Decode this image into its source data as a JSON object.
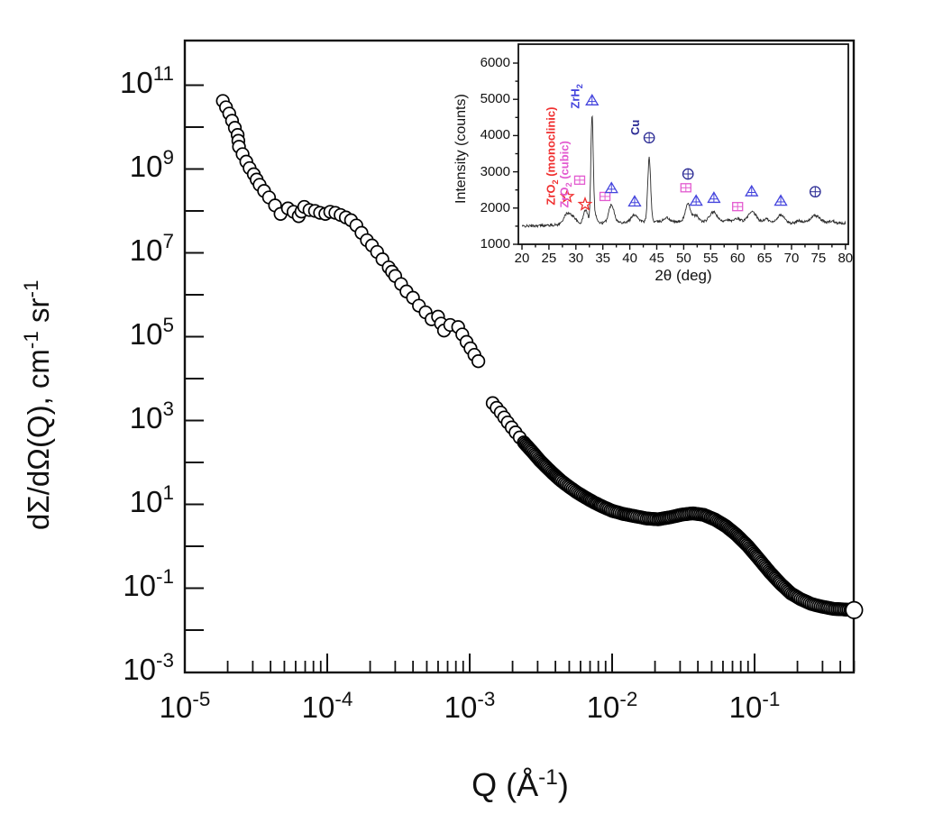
{
  "accent_colors": {
    "frame": "#111111",
    "trace": "#2b2b2b",
    "monoclinic_red": "#f03030",
    "cubic_magenta": "#e35bd0",
    "zrh2_blue": "#4444dd",
    "cu_navy": "#2b2b94"
  },
  "chart_data": [
    {
      "type": "scatter",
      "title": "",
      "x_scale": "log",
      "y_scale": "log",
      "xlim": [
        1e-05,
        0.52
      ],
      "ylim": [
        0.001,
        1200000000000.0
      ],
      "xlabel_parts": {
        "pre": "Q (Å",
        "sup": "-1",
        "post": ")"
      },
      "ylabel_parts": {
        "pre": "dΣ/dΩ(Q), cm",
        "sup1": "-1",
        "mid": " sr",
        "sup2": "-1"
      },
      "tick_base": "10",
      "x_tick_exponents": [
        -5,
        -4,
        -3,
        -2,
        -1
      ],
      "y_tick_exponents": [
        11,
        9,
        7,
        5,
        3,
        1,
        -1,
        -3
      ],
      "grid": false,
      "marker": "open-circle",
      "series": [
        {
          "name": "segment-1",
          "points": [
            [
              1.85e-05,
              42000000000.0
            ],
            [
              2.05e-05,
              21000000000.0
            ],
            [
              2.35e-05,
              6500000000.0
            ],
            [
              2.4e-05,
              3400000000.0
            ],
            [
              2.7e-05,
              1500000000.0
            ],
            [
              2.85e-05,
              1050000000.0
            ],
            [
              3.05e-05,
              750000000.0
            ],
            [
              3.35e-05,
              420000000.0
            ],
            [
              3.6e-05,
              300000000.0
            ],
            [
              3.9e-05,
              210000000.0
            ],
            [
              4.3e-05,
              135000000.0
            ],
            [
              4.7e-05,
              85000000.0
            ],
            [
              5.3e-05,
              115000000.0
            ],
            [
              5.8e-05,
              95000000.0
            ],
            [
              6.3e-05,
              75000000.0
            ],
            [
              6.9e-05,
              125000000.0
            ],
            [
              7.5e-05,
              105000000.0
            ],
            [
              8.2e-05,
              100000000.0
            ],
            [
              8.9e-05,
              90000000.0
            ],
            [
              9.7e-05,
              85000000.0
            ],
            [
              0.000105,
              95000000.0
            ],
            [
              0.000114,
              90000000.0
            ],
            [
              0.000124,
              80000000.0
            ],
            [
              0.000135,
              70000000.0
            ],
            [
              0.000147,
              60000000.0
            ],
            [
              0.00016,
              45000000.0
            ],
            [
              0.000174,
              30000000.0
            ],
            [
              0.00019,
              20000000.0
            ],
            [
              0.000206,
              15000000.0
            ],
            [
              0.000224,
              10500000.0
            ],
            [
              0.000244,
              7000000.0
            ],
            [
              0.00027,
              4500000.0
            ],
            [
              0.0003,
              2800000.0
            ],
            [
              0.00033,
              1800000.0
            ],
            [
              0.00036,
              1200000.0
            ],
            [
              0.0004,
              850000.0
            ],
            [
              0.00044,
              550000.0
            ],
            [
              0.00049,
              380000.0
            ],
            [
              0.00054,
              260000.0
            ],
            [
              0.0006,
              300000.0
            ],
            [
              0.00066,
              140000.0
            ],
            [
              0.00073,
              190000.0
            ],
            [
              0.00083,
              170000.0
            ],
            [
              0.00095,
              75000.0
            ],
            [
              0.00115,
              26000.0
            ]
          ],
          "end_marker_large": false
        },
        {
          "name": "segment-2",
          "points": [
            [
              0.00145,
              2600
            ],
            [
              0.00165,
              1550
            ],
            [
              0.00185,
              900
            ],
            [
              0.0021,
              520
            ],
            [
              0.0024,
              300
            ],
            [
              0.00275,
              180
            ],
            [
              0.0031,
              112
            ],
            [
              0.0035,
              74
            ],
            [
              0.0039,
              52
            ],
            [
              0.0044,
              36
            ],
            [
              0.005,
              26
            ],
            [
              0.0057,
              19
            ],
            [
              0.0065,
              14.5
            ],
            [
              0.0075,
              11
            ],
            [
              0.0087,
              8.6
            ],
            [
              0.01,
              7.0
            ],
            [
              0.012,
              5.9
            ],
            [
              0.0145,
              5.2
            ],
            [
              0.0175,
              4.6
            ],
            [
              0.021,
              4.4
            ],
            [
              0.0255,
              4.9
            ],
            [
              0.031,
              5.7
            ],
            [
              0.037,
              6.1
            ],
            [
              0.044,
              5.6
            ],
            [
              0.053,
              4.3
            ],
            [
              0.063,
              3.0
            ],
            [
              0.075,
              1.85
            ],
            [
              0.09,
              1.0
            ],
            [
              0.107,
              0.5
            ],
            [
              0.128,
              0.24
            ],
            [
              0.153,
              0.125
            ],
            [
              0.18,
              0.075
            ],
            [
              0.21,
              0.055
            ],
            [
              0.25,
              0.042
            ],
            [
              0.3,
              0.036
            ],
            [
              0.36,
              0.032
            ],
            [
              0.43,
              0.031
            ],
            [
              0.5,
              0.03
            ]
          ],
          "end_marker_large": true
        }
      ]
    },
    {
      "type": "line",
      "title": "",
      "xlabel": "2θ (deg)",
      "ylabel": "Intensity (counts)",
      "xlim": [
        20,
        80
      ],
      "ylim": [
        800,
        6520
      ],
      "x_ticks": [
        20,
        25,
        30,
        35,
        40,
        45,
        50,
        55,
        60,
        65,
        70,
        75,
        80
      ],
      "y_ticks": [
        1000,
        2000,
        3000,
        4000,
        5000,
        6000
      ],
      "grid": false,
      "trace": {
        "baseline": {
          "start": 1470,
          "slope": 1.8,
          "hump_center": 44,
          "hump_height": 110,
          "hump_width": 420
        },
        "noise_amplitude": 35,
        "noise_seed": 42,
        "step_deg": 0.08,
        "peaks": [
          [
            28.4,
            300,
            0.65
          ],
          [
            29.6,
            160,
            0.5
          ],
          [
            31.8,
            380,
            0.4
          ],
          [
            33.0,
            2980,
            0.22
          ],
          [
            33.6,
            220,
            0.3
          ],
          [
            36.6,
            500,
            0.5
          ],
          [
            40.9,
            200,
            0.6
          ],
          [
            43.6,
            1760,
            0.27
          ],
          [
            46.8,
            110,
            0.5
          ],
          [
            50.8,
            480,
            0.5
          ],
          [
            52.3,
            170,
            0.5
          ],
          [
            55.5,
            270,
            0.7
          ],
          [
            58.0,
            80,
            0.5
          ],
          [
            60.0,
            110,
            0.6
          ],
          [
            62.7,
            290,
            0.8
          ],
          [
            65.3,
            110,
            0.5
          ],
          [
            68.0,
            220,
            0.7
          ],
          [
            71.5,
            70,
            0.6
          ],
          [
            74.4,
            210,
            0.9
          ],
          [
            77.5,
            60,
            0.6
          ]
        ]
      },
      "phase_markers": [
        {
          "phase": "ZrO2 (monoclinic)",
          "symbol": "star",
          "color": "#f03030",
          "points": [
            [
              28.4,
              2320
            ],
            [
              31.7,
              2100
            ]
          ]
        },
        {
          "phase": "ZrO2 (cubic)",
          "symbol": "square-plus",
          "color": "#e35bd0",
          "points": [
            [
              30.7,
              2770
            ],
            [
              35.4,
              2320
            ],
            [
              50.4,
              2560
            ],
            [
              60.0,
              2040
            ]
          ]
        },
        {
          "phase": "ZrH2",
          "symbol": "triangle-plus",
          "color": "#4444dd",
          "points": [
            [
              33.0,
              4960
            ],
            [
              36.6,
              2540
            ],
            [
              40.9,
              2170
            ],
            [
              52.3,
              2190
            ],
            [
              55.6,
              2270
            ],
            [
              62.6,
              2450
            ],
            [
              68.0,
              2190
            ]
          ]
        },
        {
          "phase": "Cu",
          "symbol": "circle-plus",
          "color": "#2b2b94",
          "points": [
            [
              43.6,
              3940
            ],
            [
              50.8,
              2940
            ],
            [
              74.4,
              2450
            ]
          ]
        }
      ],
      "annotations": [
        {
          "pre": "ZrO",
          "sub": "2",
          "post": " (monoclinic)",
          "color": "#f03030",
          "x": 28.8,
          "y": 2590
        },
        {
          "pre": "ZrO",
          "sub": "2",
          "post": " (cubic)",
          "color": "#e35bd0",
          "x": 31.4,
          "y": 2520
        },
        {
          "pre": "ZrH",
          "sub": "2",
          "post": "",
          "color": "#4444dd",
          "x": 33.3,
          "y": 5250
        },
        {
          "pre": "Cu",
          "sub": "",
          "post": "",
          "color": "#2b2b94",
          "x": 43.6,
          "y": 4380
        }
      ]
    }
  ]
}
